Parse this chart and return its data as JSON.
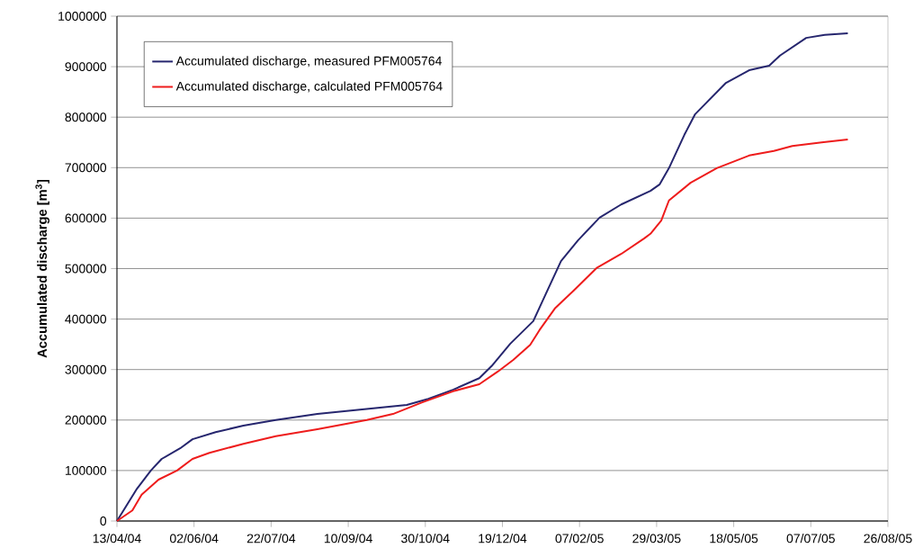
{
  "chart_data": {
    "type": "line",
    "ylabel": "Accumulated discharge [m$^{3}$]",
    "xlim": [
      "2004-04-13",
      "2005-08-26"
    ],
    "xticks": [
      {
        "value": "2004-04-13",
        "label": "13/04/04"
      },
      {
        "value": "2004-06-02",
        "label": "02/06/04"
      },
      {
        "value": "2004-07-22",
        "label": "22/07/04"
      },
      {
        "value": "2004-09-10",
        "label": "10/09/04"
      },
      {
        "value": "2004-10-30",
        "label": "30/10/04"
      },
      {
        "value": "2004-12-19",
        "label": "19/12/04"
      },
      {
        "value": "2005-02-07",
        "label": "07/02/05"
      },
      {
        "value": "2005-03-29",
        "label": "29/03/05"
      },
      {
        "value": "2005-05-18",
        "label": "18/05/05"
      },
      {
        "value": "2005-07-07",
        "label": "07/07/05"
      },
      {
        "value": "2005-08-26",
        "label": "26/08/05"
      }
    ],
    "ylim": [
      0,
      1000000
    ],
    "yticks": [
      0,
      100000,
      200000,
      300000,
      400000,
      500000,
      600000,
      700000,
      800000,
      900000,
      1000000
    ],
    "grid": "y",
    "legend": "top left",
    "marker": "none",
    "line_style": "solid",
    "series": [
      {
        "name": "Accumulated discharge, measured PFM005764",
        "color": "#26266e",
        "x": [
          "2004-04-13",
          "2004-04-26",
          "2004-05-05",
          "2004-05-12",
          "2004-05-24",
          "2004-06-01",
          "2004-06-16",
          "2004-07-04",
          "2004-07-25",
          "2004-08-21",
          "2004-09-19",
          "2004-10-18",
          "2004-11-01",
          "2004-11-17",
          "2004-12-04",
          "2004-12-12",
          "2004-12-24",
          "2005-01-08",
          "2005-01-16",
          "2005-01-26",
          "2005-02-06",
          "2005-02-20",
          "2005-03-06",
          "2005-03-25",
          "2005-03-31",
          "2005-04-06",
          "2005-04-16",
          "2005-04-23",
          "2005-05-13",
          "2005-05-28",
          "2005-06-10",
          "2005-06-17",
          "2005-07-04",
          "2005-07-16",
          "2005-07-31"
        ],
        "values": [
          0,
          64000,
          100000,
          123000,
          144000,
          162000,
          176000,
          189000,
          200000,
          212000,
          221000,
          230000,
          242000,
          260000,
          283000,
          307000,
          351000,
          396000,
          449000,
          515000,
          556000,
          601000,
          627000,
          654000,
          667000,
          699000,
          765000,
          806000,
          868000,
          893000,
          902000,
          922000,
          957000,
          963000,
          966000
        ]
      },
      {
        "name": "Accumulated discharge, calculated PFM005764",
        "color": "#ee1c1c",
        "x": [
          "2004-04-13",
          "2004-04-23",
          "2004-04-29",
          "2004-05-10",
          "2004-05-22",
          "2004-06-01",
          "2004-06-12",
          "2004-07-04",
          "2004-07-25",
          "2004-08-21",
          "2004-09-22",
          "2004-10-09",
          "2004-10-28",
          "2004-11-17",
          "2004-12-04",
          "2004-12-16",
          "2004-12-26",
          "2005-01-06",
          "2005-01-12",
          "2005-01-22",
          "2005-02-03",
          "2005-02-18",
          "2005-03-06",
          "2005-03-21",
          "2005-03-25",
          "2005-04-01",
          "2005-04-06",
          "2005-04-20",
          "2005-05-07",
          "2005-05-28",
          "2005-06-13",
          "2005-06-25",
          "2005-07-14",
          "2005-07-31"
        ],
        "values": [
          0,
          21000,
          52000,
          82000,
          100000,
          123000,
          135000,
          153000,
          168000,
          182000,
          200000,
          212000,
          235000,
          257000,
          271000,
          296000,
          319000,
          349000,
          378000,
          421000,
          456000,
          501000,
          529000,
          560000,
          569000,
          595000,
          635000,
          670000,
          699000,
          724000,
          733000,
          743000,
          750000,
          756000
        ]
      }
    ]
  }
}
